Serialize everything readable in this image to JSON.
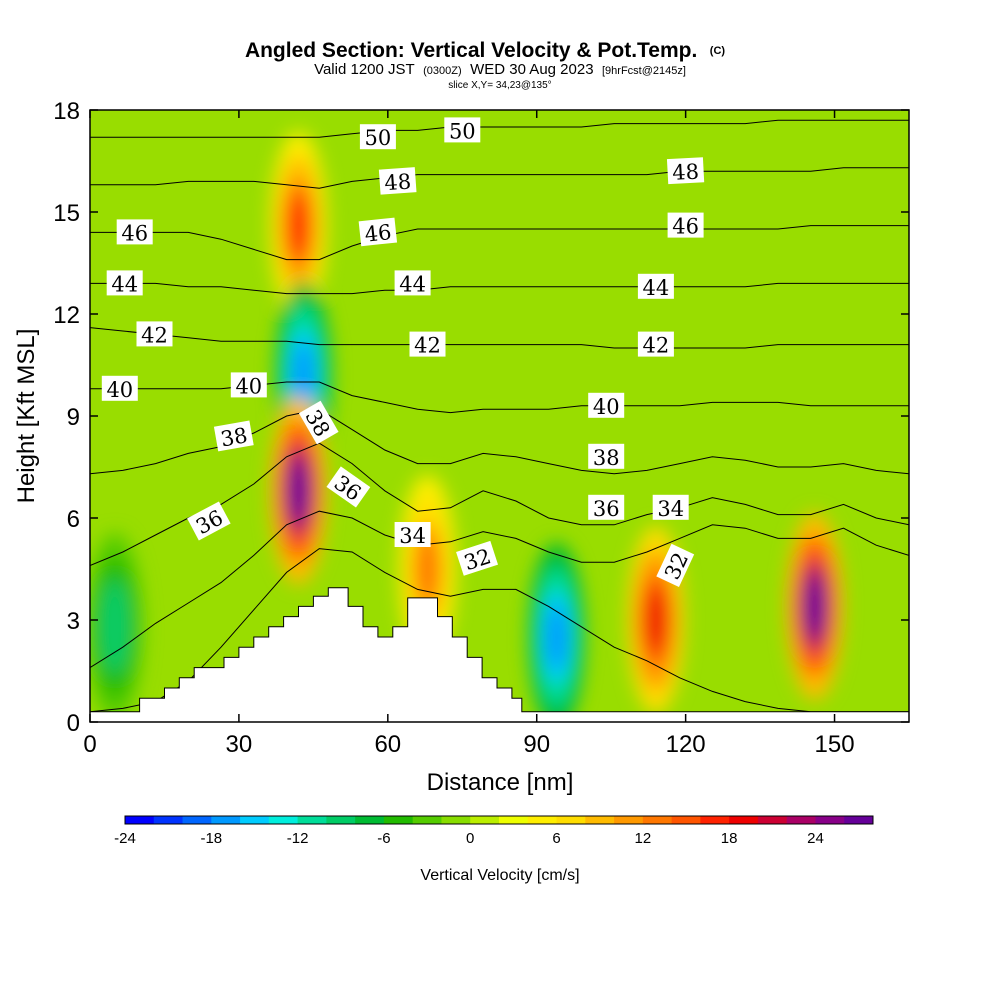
{
  "title": {
    "main": "Angled Section: Vertical Velocity & Pot.Temp.",
    "main_suffix": "(C)",
    "line2_a": "Valid 1200 JST",
    "line2_b": "(0300Z)",
    "line2_c": "WED 30 Aug 2023",
    "line2_d": "[9hrFcst@2145z]",
    "line3": "slice X,Y= 34,23@135°"
  },
  "chart_data": {
    "type": "heatmap",
    "xlabel": "Distance [nm]",
    "ylabel": "Height [Kft MSL]",
    "xlim": [
      0,
      165
    ],
    "ylim": [
      0,
      18
    ],
    "x_ticks": [
      "0",
      "30",
      "60",
      "90",
      "120",
      "150"
    ],
    "x_tick_values": [
      0,
      30,
      60,
      90,
      120,
      150
    ],
    "y_ticks": [
      "0",
      "3",
      "6",
      "9",
      "12",
      "15",
      "18"
    ],
    "y_tick_values": [
      0,
      3,
      6,
      9,
      12,
      15,
      18
    ],
    "colorbar": {
      "title": "Vertical Velocity [cm/s]",
      "min": -24,
      "max": 28,
      "step": 2,
      "tick_labels": [
        "-24",
        "-18",
        "-12",
        "-6",
        "0",
        "6",
        "12",
        "18",
        "24"
      ],
      "tick_values": [
        -24,
        -18,
        -12,
        -6,
        0,
        6,
        12,
        18,
        24
      ],
      "colors": [
        "#0000ff",
        "#0033ff",
        "#0066ff",
        "#0099ff",
        "#00ccff",
        "#00eedd",
        "#00dd99",
        "#00cc66",
        "#00bb33",
        "#22bb00",
        "#55cc00",
        "#88dd00",
        "#bbee00",
        "#eeff00",
        "#ffee00",
        "#ffdd00",
        "#ffbb00",
        "#ff9900",
        "#ff7700",
        "#ff5500",
        "#ff2200",
        "#ee0000",
        "#cc0033",
        "#aa0066",
        "#880088",
        "#660099"
      ]
    },
    "vertical_velocity_features": [
      {
        "x": 42,
        "height": 14.6,
        "value": 16
      },
      {
        "x": 43,
        "height": 10.2,
        "value": -18
      },
      {
        "x": 42,
        "height": 6.8,
        "value": 26
      },
      {
        "x": 94,
        "height": 2.5,
        "value": -18
      },
      {
        "x": 114,
        "height": 3.0,
        "value": 18
      },
      {
        "x": 146,
        "height": 3.4,
        "value": 26
      },
      {
        "x": 5,
        "height": 2.8,
        "value": -10
      },
      {
        "x": 68,
        "height": 4.5,
        "value": 12
      }
    ],
    "terrain": [
      {
        "x": 0,
        "height": 0.3
      },
      {
        "x": 10,
        "height": 0.3
      },
      {
        "x": 10,
        "height": 0.7
      },
      {
        "x": 15,
        "height": 0.7
      },
      {
        "x": 15,
        "height": 1.0
      },
      {
        "x": 18,
        "height": 1.0
      },
      {
        "x": 18,
        "height": 1.3
      },
      {
        "x": 21,
        "height": 1.3
      },
      {
        "x": 21,
        "height": 1.6
      },
      {
        "x": 27,
        "height": 1.6
      },
      {
        "x": 27,
        "height": 1.9
      },
      {
        "x": 30,
        "height": 1.9
      },
      {
        "x": 30,
        "height": 2.2
      },
      {
        "x": 33,
        "height": 2.2
      },
      {
        "x": 33,
        "height": 2.5
      },
      {
        "x": 36,
        "height": 2.5
      },
      {
        "x": 36,
        "height": 2.8
      },
      {
        "x": 39,
        "height": 2.8
      },
      {
        "x": 39,
        "height": 3.1
      },
      {
        "x": 42,
        "height": 3.1
      },
      {
        "x": 42,
        "height": 3.4
      },
      {
        "x": 45,
        "height": 3.4
      },
      {
        "x": 45,
        "height": 3.7
      },
      {
        "x": 48,
        "height": 3.7
      },
      {
        "x": 48,
        "height": 3.95
      },
      {
        "x": 52,
        "height": 3.95
      },
      {
        "x": 52,
        "height": 3.4
      },
      {
        "x": 55,
        "height": 3.4
      },
      {
        "x": 55,
        "height": 2.8
      },
      {
        "x": 58,
        "height": 2.8
      },
      {
        "x": 58,
        "height": 2.5
      },
      {
        "x": 61,
        "height": 2.5
      },
      {
        "x": 61,
        "height": 2.8
      },
      {
        "x": 64,
        "height": 2.8
      },
      {
        "x": 64,
        "height": 3.65
      },
      {
        "x": 70,
        "height": 3.65
      },
      {
        "x": 70,
        "height": 3.1
      },
      {
        "x": 73,
        "height": 3.1
      },
      {
        "x": 73,
        "height": 2.5
      },
      {
        "x": 76,
        "height": 2.5
      },
      {
        "x": 76,
        "height": 1.9
      },
      {
        "x": 79,
        "height": 1.9
      },
      {
        "x": 79,
        "height": 1.3
      },
      {
        "x": 82,
        "height": 1.3
      },
      {
        "x": 82,
        "height": 1.0
      },
      {
        "x": 85,
        "height": 1.0
      },
      {
        "x": 85,
        "height": 0.7
      },
      {
        "x": 87,
        "height": 0.7
      },
      {
        "x": 87,
        "height": 0.3
      },
      {
        "x": 165,
        "height": 0.3
      }
    ],
    "theta_contours": [
      {
        "value": 32,
        "heights": [
          0.3,
          0.4,
          0.6,
          1.2,
          2.2,
          3.3,
          4.4,
          5.1,
          5.0,
          4.4,
          3.9,
          3.7,
          3.9,
          3.9,
          3.4,
          2.8,
          2.2,
          1.8,
          1.3,
          0.9,
          0.6,
          0.4,
          0.3,
          0.3,
          0.3,
          0.3
        ]
      },
      {
        "value": 34,
        "heights": [
          1.6,
          2.2,
          2.9,
          3.5,
          4.1,
          4.9,
          5.8,
          6.2,
          6.0,
          5.5,
          5.2,
          5.3,
          5.6,
          5.4,
          5.0,
          4.7,
          4.7,
          5.0,
          5.4,
          5.8,
          5.7,
          5.4,
          5.4,
          5.7,
          5.2,
          4.9
        ]
      },
      {
        "value": 36,
        "heights": [
          4.6,
          5.0,
          5.5,
          6.0,
          6.4,
          7.0,
          7.8,
          8.2,
          7.6,
          6.8,
          6.2,
          6.3,
          6.8,
          6.5,
          6.0,
          5.8,
          5.8,
          6.1,
          6.3,
          6.6,
          6.4,
          6.1,
          6.1,
          6.4,
          6.0,
          5.8
        ]
      },
      {
        "value": 38,
        "heights": [
          7.3,
          7.4,
          7.6,
          7.9,
          8.1,
          8.5,
          9.0,
          9.2,
          8.6,
          8.0,
          7.6,
          7.6,
          7.9,
          7.8,
          7.6,
          7.4,
          7.3,
          7.4,
          7.6,
          7.8,
          7.7,
          7.5,
          7.5,
          7.6,
          7.4,
          7.3
        ]
      },
      {
        "value": 40,
        "heights": [
          9.8,
          9.8,
          9.8,
          9.8,
          9.8,
          9.9,
          10.0,
          10.0,
          9.6,
          9.4,
          9.2,
          9.1,
          9.2,
          9.2,
          9.2,
          9.3,
          9.3,
          9.3,
          9.3,
          9.4,
          9.4,
          9.4,
          9.3,
          9.3,
          9.3,
          9.3
        ]
      },
      {
        "value": 42,
        "heights": [
          11.6,
          11.5,
          11.4,
          11.3,
          11.2,
          11.2,
          11.2,
          11.1,
          11.1,
          11.1,
          11.1,
          11.1,
          11.1,
          11.1,
          11.1,
          11.1,
          11.0,
          11.0,
          11.0,
          11.0,
          11.0,
          11.1,
          11.1,
          11.1,
          11.1,
          11.1
        ]
      },
      {
        "value": 44,
        "heights": [
          12.9,
          12.9,
          12.9,
          12.8,
          12.8,
          12.7,
          12.6,
          12.6,
          12.6,
          12.7,
          12.7,
          12.8,
          12.8,
          12.8,
          12.8,
          12.8,
          12.8,
          12.8,
          12.8,
          12.8,
          12.8,
          12.9,
          12.9,
          12.9,
          12.9,
          12.9
        ]
      },
      {
        "value": 46,
        "heights": [
          14.4,
          14.4,
          14.4,
          14.4,
          14.2,
          13.9,
          13.6,
          13.6,
          14.0,
          14.3,
          14.5,
          14.5,
          14.5,
          14.5,
          14.5,
          14.5,
          14.5,
          14.5,
          14.5,
          14.5,
          14.5,
          14.5,
          14.6,
          14.6,
          14.6,
          14.6
        ]
      },
      {
        "value": 48,
        "heights": [
          15.8,
          15.8,
          15.8,
          15.9,
          15.9,
          15.9,
          15.8,
          15.7,
          15.9,
          16.0,
          16.1,
          16.1,
          16.1,
          16.1,
          16.1,
          16.1,
          16.1,
          16.1,
          16.2,
          16.2,
          16.2,
          16.2,
          16.2,
          16.3,
          16.3,
          16.3
        ]
      },
      {
        "value": 50,
        "heights": [
          17.2,
          17.2,
          17.2,
          17.2,
          17.2,
          17.2,
          17.2,
          17.2,
          17.3,
          17.4,
          17.4,
          17.5,
          17.5,
          17.5,
          17.5,
          17.5,
          17.6,
          17.6,
          17.6,
          17.6,
          17.6,
          17.7,
          17.7,
          17.7,
          17.7,
          17.7
        ]
      }
    ],
    "theta_contour_x": [
      0,
      6.6,
      13.2,
      19.8,
      26.4,
      33,
      39.6,
      46.2,
      52.8,
      59.4,
      66,
      72.6,
      79.2,
      85.8,
      92.4,
      99,
      105.6,
      112.2,
      118.8,
      125.4,
      132,
      138.6,
      145.2,
      151.8,
      158.4,
      165
    ],
    "contour_labels": [
      {
        "text": "50",
        "x": 58,
        "height": 17.2,
        "angle": 0
      },
      {
        "text": "50",
        "x": 75,
        "height": 17.4,
        "angle": 0
      },
      {
        "text": "48",
        "x": 62,
        "height": 15.9,
        "angle": -4
      },
      {
        "text": "48",
        "x": 120,
        "height": 16.2,
        "angle": -3
      },
      {
        "text": "46",
        "x": 9,
        "height": 14.4,
        "angle": 0
      },
      {
        "text": "46",
        "x": 58,
        "height": 14.4,
        "angle": -6
      },
      {
        "text": "46",
        "x": 120,
        "height": 14.6,
        "angle": 0
      },
      {
        "text": "44",
        "x": 7,
        "height": 12.9,
        "angle": 0
      },
      {
        "text": "44",
        "x": 65,
        "height": 12.9,
        "angle": 0
      },
      {
        "text": "44",
        "x": 114,
        "height": 12.8,
        "angle": 0
      },
      {
        "text": "42",
        "x": 13,
        "height": 11.4,
        "angle": 0
      },
      {
        "text": "42",
        "x": 68,
        "height": 11.1,
        "angle": 0
      },
      {
        "text": "42",
        "x": 114,
        "height": 11.1,
        "angle": 0
      },
      {
        "text": "40",
        "x": 6,
        "height": 9.8,
        "angle": 0
      },
      {
        "text": "40",
        "x": 32,
        "height": 9.9,
        "angle": 0
      },
      {
        "text": "40",
        "x": 104,
        "height": 9.3,
        "angle": 0
      },
      {
        "text": "38",
        "x": 29,
        "height": 8.4,
        "angle": -10
      },
      {
        "text": "38",
        "x": 46,
        "height": 8.8,
        "angle": 60
      },
      {
        "text": "38",
        "x": 104,
        "height": 7.8,
        "angle": 0
      },
      {
        "text": "36",
        "x": 24,
        "height": 5.9,
        "angle": -28
      },
      {
        "text": "36",
        "x": 52,
        "height": 6.9,
        "angle": 35
      },
      {
        "text": "36",
        "x": 104,
        "height": 6.3,
        "angle": 0
      },
      {
        "text": "34",
        "x": 65,
        "height": 5.5,
        "angle": 0
      },
      {
        "text": "34",
        "x": 117,
        "height": 6.3,
        "angle": 0
      },
      {
        "text": "32",
        "x": 78,
        "height": 4.8,
        "angle": -18
      },
      {
        "text": "32",
        "x": 118,
        "height": 4.6,
        "angle": -65
      }
    ]
  }
}
